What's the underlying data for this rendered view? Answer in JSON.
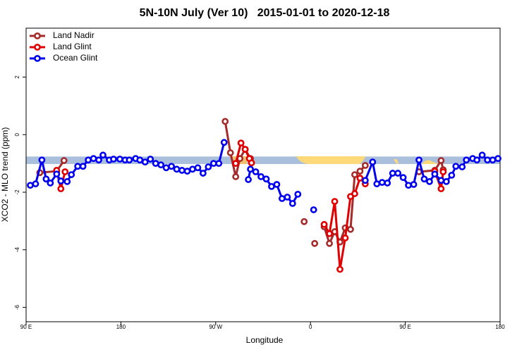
{
  "chart_data": {
    "type": "line",
    "title": "5N-10N July (Ver 10)   2015-01-01 to 2020-12-18",
    "x_label": "Longitude",
    "y_label": "XCO2 - MLO trend (ppm)",
    "xlim": [
      90,
      540
    ],
    "ylim": [
      -6.5,
      3.7
    ],
    "xticks": [
      {
        "value": 90,
        "label": "90 E"
      },
      180,
      {
        "value": 270,
        "label": "90 W"
      },
      {
        "value": 360,
        "label": "0"
      },
      {
        "value": 450,
        "label": "90 E"
      },
      {
        "value": 540,
        "label": "180"
      }
    ],
    "yticks": [
      -6,
      -4,
      -2,
      0,
      2
    ],
    "band": [
      -1.02,
      -0.76
    ],
    "band_color": "#a9bfdc",
    "legend": "top-left",
    "series": [
      {
        "name": "Land Nadir",
        "color": "#a52a2a",
        "x": [
          103,
          119,
          126,
          182,
          279,
          284,
          289,
          293,
          298,
          303,
          340,
          354,
          356,
          364,
          369,
          373,
          378,
          383,
          388,
          393,
          398,
          402,
          407,
          412,
          432,
          463,
          478,
          484,
          486
        ],
        "values": [
          -1.32,
          -1.27,
          -0.9,
          null,
          0.46,
          -0.63,
          -1.46,
          -0.83,
          -0.51,
          -0.83,
          null,
          -3.02,
          null,
          -3.78,
          null,
          -3.2,
          -3.78,
          -3.37,
          -3.73,
          -3.24,
          -3.29,
          -1.39,
          -1.27,
          -1.07,
          null,
          -1.29,
          -1.24,
          -0.9,
          -1.22
        ]
      },
      {
        "name": "Land Glint",
        "color": "#e00000",
        "x": [
          119,
          123,
          127,
          182,
          289,
          294,
          298,
          302,
          304,
          348,
          373,
          378,
          383,
          388,
          393,
          398,
          402,
          407,
          412,
          432,
          478,
          484,
          486
        ],
        "values": [
          -1.24,
          -1.88,
          -1.29,
          null,
          -1.0,
          -0.29,
          -0.51,
          -0.83,
          -0.98,
          null,
          -3.12,
          -3.44,
          -2.32,
          -4.68,
          -3.59,
          -2.15,
          -2.05,
          -1.51,
          -1.71,
          null,
          -1.27,
          -1.88,
          -1.29
        ]
      },
      {
        "name": "Ocean Glint",
        "color": "#0000ee",
        "x": [
          94,
          99,
          105,
          109,
          113,
          119,
          123,
          129,
          133,
          139,
          144,
          149,
          154,
          159,
          163,
          169,
          173,
          179,
          184,
          188,
          194,
          198,
          203,
          208,
          213,
          218,
          223,
          228,
          233,
          238,
          243,
          248,
          253,
          258,
          263,
          268,
          273,
          278,
          283,
          301,
          303,
          308,
          313,
          318,
          323,
          328,
          333,
          338,
          343,
          348,
          352,
          363,
          407,
          412,
          419,
          423,
          428,
          433,
          438,
          443,
          448,
          453,
          458,
          463,
          468,
          473,
          478,
          484,
          489,
          494,
          498,
          504,
          508,
          514,
          518,
          523,
          528,
          533,
          538
        ],
        "values": [
          -1.76,
          -1.71,
          -0.88,
          -1.54,
          -1.68,
          -1.37,
          -1.61,
          -1.63,
          -1.39,
          -1.1,
          -1.1,
          -0.88,
          -0.83,
          -0.88,
          -0.71,
          -0.88,
          -0.85,
          -0.85,
          -0.88,
          -0.88,
          -0.83,
          -0.88,
          -0.95,
          -0.85,
          -1.0,
          -1.05,
          -1.15,
          -1.1,
          -1.2,
          -1.24,
          -1.27,
          -1.2,
          -1.15,
          -1.34,
          -1.12,
          -1.0,
          -1.0,
          -0.27,
          null,
          -1.56,
          -1.2,
          -1.29,
          -1.46,
          -1.54,
          -1.8,
          -1.73,
          -2.22,
          -2.17,
          -2.39,
          -2.07,
          null,
          -2.61,
          null,
          -1.59,
          -0.95,
          -1.71,
          -1.66,
          -1.68,
          -1.34,
          -1.34,
          -1.49,
          -1.76,
          -1.73,
          -0.88,
          -1.54,
          -1.63,
          -1.37,
          -1.59,
          -1.63,
          -1.41,
          -1.1,
          -1.12,
          -0.88,
          -0.83,
          -0.88,
          -0.71,
          -0.88,
          -0.88,
          -0.83
        ]
      }
    ]
  }
}
